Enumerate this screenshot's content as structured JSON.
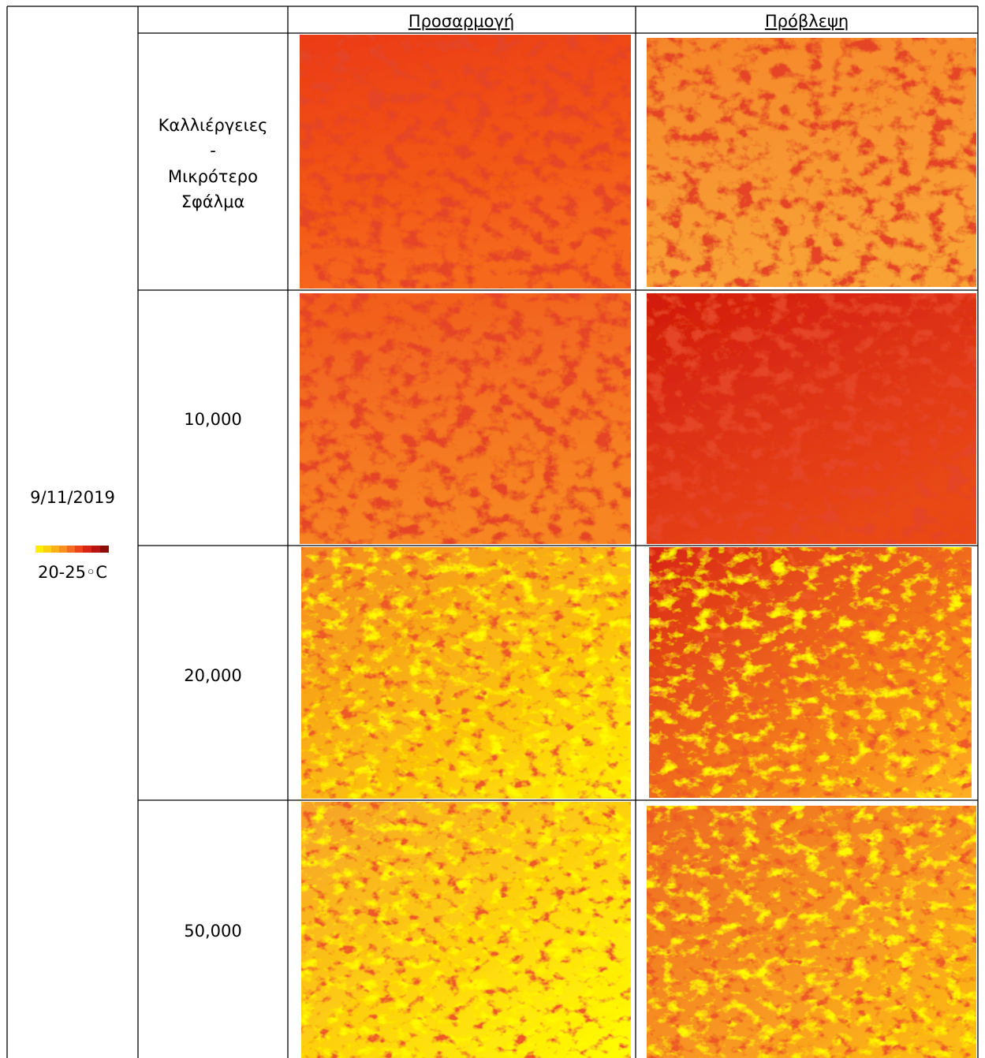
{
  "header": {
    "columns": [
      "Προσαρμογή",
      "Πρόβλεψη"
    ]
  },
  "sidebar": {
    "date": "9/11/2019",
    "legend_label": "20-25◦C"
  },
  "rows": [
    {
      "label": [
        "Καλλιέργειες",
        "-",
        "Μικρότερο",
        "Σφάλμα"
      ]
    },
    {
      "label": "10,000"
    },
    {
      "label": "20,000"
    },
    {
      "label": "50,000"
    }
  ]
}
